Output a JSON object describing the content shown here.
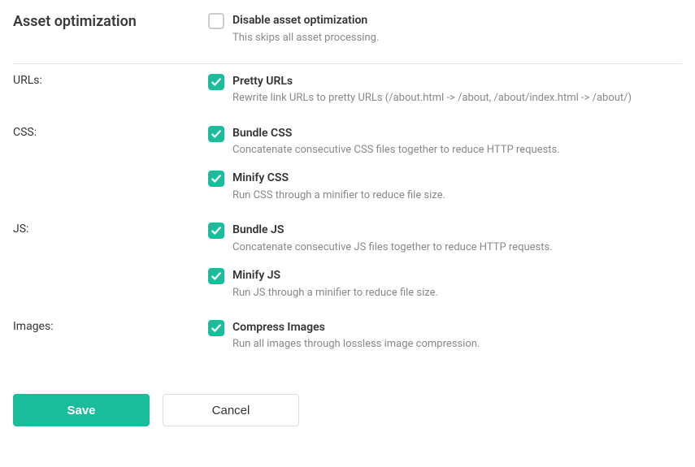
{
  "title": "Asset optimization",
  "colors": {
    "accent": "#1bbc9b",
    "text": "#333333",
    "muted": "#888888",
    "border": "#e5e5e5",
    "checkbox_border": "#cccccc",
    "background": "#ffffff"
  },
  "header_option": {
    "checked": false,
    "label": "Disable asset optimization",
    "desc": "This skips all asset processing."
  },
  "groups": [
    {
      "label": "URLs:",
      "options": [
        {
          "checked": true,
          "label": "Pretty URLs",
          "desc": "Rewrite link URLs to pretty URLs (/about.html -> /about, /about/index.html -> /about/)"
        }
      ]
    },
    {
      "label": "CSS:",
      "options": [
        {
          "checked": true,
          "label": "Bundle CSS",
          "desc": "Concatenate consecutive CSS files together to reduce HTTP requests."
        },
        {
          "checked": true,
          "label": "Minify CSS",
          "desc": "Run CSS through a minifier to reduce file size."
        }
      ]
    },
    {
      "label": "JS:",
      "options": [
        {
          "checked": true,
          "label": "Bundle JS",
          "desc": "Concatenate consecutive JS files together to reduce HTTP requests."
        },
        {
          "checked": true,
          "label": "Minify JS",
          "desc": "Run JS through a minifier to reduce file size."
        }
      ]
    },
    {
      "label": "Images:",
      "options": [
        {
          "checked": true,
          "label": "Compress Images",
          "desc": "Run all images through lossless image compression."
        }
      ]
    }
  ],
  "buttons": {
    "save": "Save",
    "cancel": "Cancel"
  }
}
